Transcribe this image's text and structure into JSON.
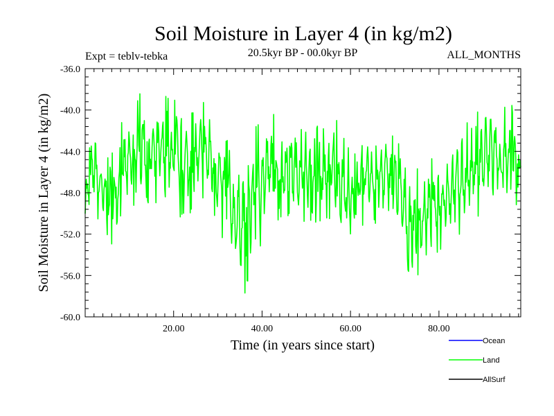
{
  "chart_data": {
    "type": "line",
    "title": "Soil Moisture in Layer 4 (in kg/m2)",
    "subtitle_left": "Expt = teblv-tebka",
    "subtitle_center": "20.5kyr BP - 00.0kyr BP",
    "subtitle_right": "ALL_MONTHS",
    "xlabel": "Time (in years since start)",
    "ylabel": "Soil Moisture in Layer 4 (in kg/m2)",
    "xlim": [
      0,
      98.5
    ],
    "ylim": [
      -60,
      -36
    ],
    "x_major_ticks": [
      20,
      40,
      60,
      80
    ],
    "x_tick_labels": [
      "20.00",
      "40.00",
      "60.00",
      "80.00"
    ],
    "y_major_ticks": [
      -60,
      -56,
      -52,
      -48,
      -44,
      -40,
      -36
    ],
    "y_tick_labels": [
      "-60.0",
      "-56.0",
      "-52.0",
      "-48.0",
      "-44.0",
      "-40.0",
      "-36.0"
    ],
    "series": [
      {
        "name": "Land",
        "color": "#00ff00",
        "envelope_x": [
          0,
          2,
          4,
          6,
          8,
          10,
          12,
          13.5,
          15,
          17,
          20,
          23,
          26,
          28,
          30,
          32,
          34,
          36,
          38,
          40,
          42,
          44,
          46,
          48,
          50,
          52,
          54,
          56,
          58,
          60,
          62,
          64,
          66,
          68,
          70,
          72,
          74,
          76,
          78,
          80,
          82,
          84,
          86,
          88,
          90,
          92,
          94,
          96,
          98.5
        ],
        "envelope_lo": [
          -52,
          -50,
          -52,
          -55.8,
          -51,
          -50,
          -49.5,
          -49,
          -49.5,
          -50,
          -51,
          -50.5,
          -50,
          -50,
          -51,
          -54.5,
          -55.5,
          -58.2,
          -55.5,
          -53,
          -51.5,
          -51,
          -50.5,
          -51,
          -51,
          -51.5,
          -51,
          -51.5,
          -53,
          -54.5,
          -52,
          -51,
          -51.5,
          -51,
          -52,
          -55,
          -57,
          -56.5,
          -55,
          -54,
          -53,
          -52.5,
          -52,
          -51.5,
          -50.5,
          -50.5,
          -51,
          -52,
          -52
        ],
        "envelope_hi": [
          -46,
          -40.5,
          -44.5,
          -43.5,
          -41,
          -40.5,
          -38.5,
          -37.2,
          -39.5,
          -38.5,
          -38.2,
          -40,
          -39,
          -38.8,
          -41.5,
          -42.5,
          -45.5,
          -43,
          -41.5,
          -40.5,
          -39.5,
          -41,
          -40,
          -41,
          -42,
          -41,
          -41.5,
          -40,
          -41.5,
          -44,
          -43,
          -40.5,
          -42,
          -41.5,
          -42,
          -43.5,
          -45.5,
          -45,
          -44.5,
          -44,
          -42.5,
          -42,
          -41,
          -40,
          -39,
          -37.2,
          -39.5,
          -39,
          -40
        ],
        "series_seed": 7,
        "samples_per_year": 8
      },
      {
        "name": "Ocean",
        "color": "#0000ff",
        "values": []
      },
      {
        "name": "AllSurf",
        "color": "#000000",
        "values": []
      }
    ],
    "legend": {
      "position": "bottom-right",
      "entries": [
        {
          "label": "Ocean",
          "color": "#0000ff"
        },
        {
          "label": "Land",
          "color": "#00ff00"
        },
        {
          "label": "AllSurf",
          "color": "#000000"
        }
      ]
    }
  }
}
